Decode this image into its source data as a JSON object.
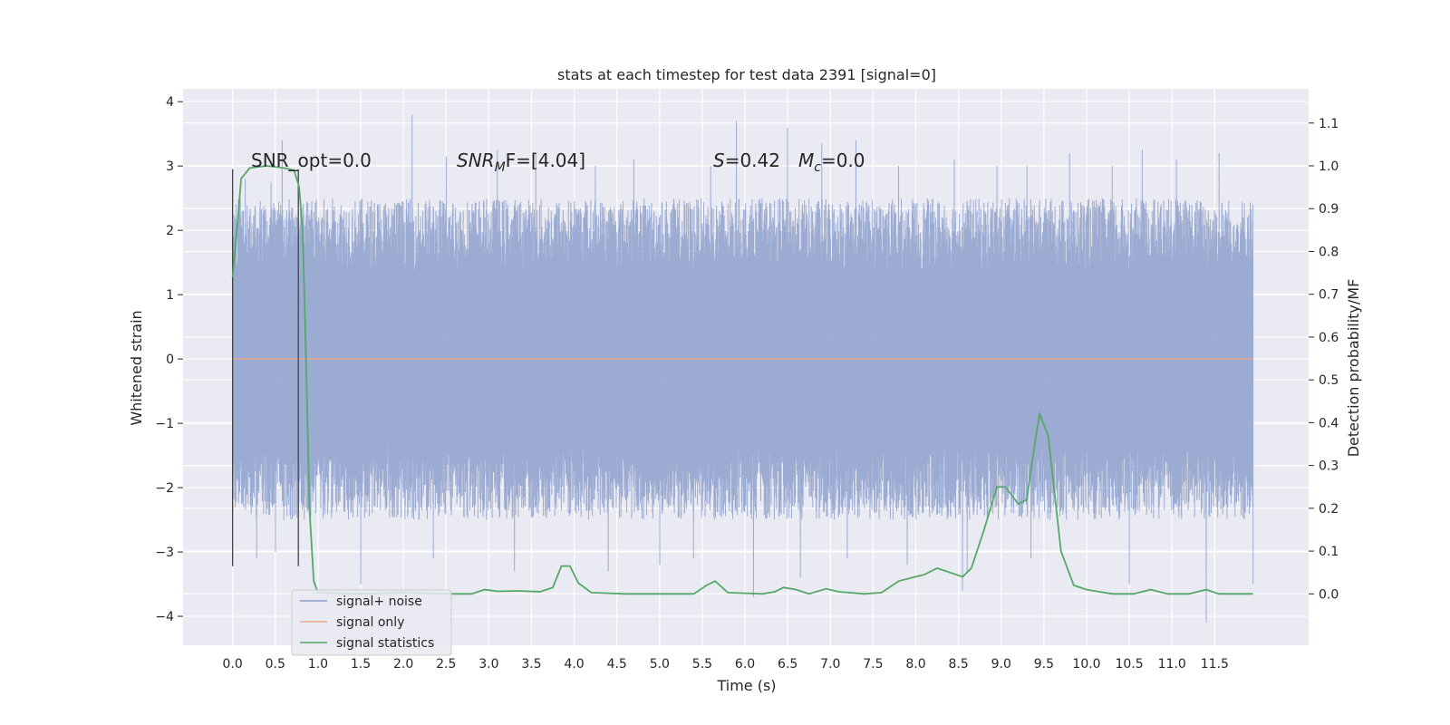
{
  "chart_data": {
    "type": "line",
    "title": "stats at each timestep for test data 2391 [signal=0]",
    "xlabel": "Time (s)",
    "ylabel": "Whitened strain",
    "y2label": "Detection probability/MF",
    "xlim": [
      -0.58,
      12.6
    ],
    "ylim": [
      -4.45,
      4.2
    ],
    "y2lim": [
      -0.12,
      1.18
    ],
    "xticks": [
      "0.0",
      "0.5",
      "1.0",
      "1.5",
      "2.0",
      "2.5",
      "3.0",
      "3.5",
      "4.0",
      "4.5",
      "5.0",
      "5.5",
      "6.0",
      "6.5",
      "7.0",
      "7.5",
      "8.0",
      "8.5",
      "9.0",
      "9.5",
      "10.0",
      "10.5",
      "11.0",
      "11.5"
    ],
    "yticks": [
      "−4",
      "−3",
      "−2",
      "−1",
      "0",
      "1",
      "2",
      "3",
      "4"
    ],
    "y2ticks": [
      "0.0",
      "0.1",
      "0.2",
      "0.3",
      "0.4",
      "0.5",
      "0.6",
      "0.7",
      "0.8",
      "0.9",
      "1.0",
      "1.1"
    ],
    "grid": true,
    "legend_position": "lower-left",
    "annotations": {
      "snr_opt": "SNR_opt=0.0",
      "snr_mf_base": "SNR",
      "snr_mf_sub": "M",
      "snr_mf_rest": "F=[4.04]",
      "s_var": "S",
      "s_rest": "=0.42",
      "mc_var": "M",
      "mc_sub": "c",
      "mc_rest": "=0.0"
    },
    "vlines_x": [
      0.0,
      0.77
    ],
    "series": [
      {
        "name": "signal+ noise",
        "color": "#8da0cb",
        "duration": 11.95,
        "envelope_upper": 2.5,
        "envelope_lower": -2.5,
        "peaks": [
          [
            0.15,
            2.8
          ],
          [
            0.45,
            2.75
          ],
          [
            0.58,
            3.4
          ],
          [
            2.1,
            3.8
          ],
          [
            2.5,
            3.15
          ],
          [
            3.1,
            3.25
          ],
          [
            3.55,
            3.2
          ],
          [
            4.25,
            3.0
          ],
          [
            4.7,
            3.1
          ],
          [
            5.6,
            3.0
          ],
          [
            5.9,
            3.7
          ],
          [
            6.5,
            3.6
          ],
          [
            6.9,
            3.35
          ],
          [
            7.3,
            3.4
          ],
          [
            7.8,
            3.0
          ],
          [
            8.45,
            3.1
          ],
          [
            8.95,
            3.0
          ],
          [
            9.3,
            3.0
          ],
          [
            9.8,
            3.2
          ],
          [
            10.3,
            3.0
          ],
          [
            10.65,
            3.25
          ],
          [
            11.05,
            3.1
          ],
          [
            11.55,
            3.2
          ],
          [
            11.95,
            2.4
          ],
          [
            0.28,
            -3.1
          ],
          [
            1.5,
            -3.5
          ],
          [
            2.35,
            -3.1
          ],
          [
            3.3,
            -3.3
          ],
          [
            4.4,
            -3.3
          ],
          [
            5.0,
            -3.2
          ],
          [
            6.1,
            -3.7
          ],
          [
            6.65,
            -3.4
          ],
          [
            7.9,
            -3.2
          ],
          [
            8.55,
            -3.6
          ],
          [
            8.6,
            -3.3
          ],
          [
            9.35,
            -3.1
          ],
          [
            10.5,
            -3.5
          ],
          [
            11.4,
            -4.1
          ],
          [
            11.95,
            -3.5
          ],
          [
            0.5,
            -3.0
          ],
          [
            5.4,
            -3.1
          ],
          [
            7.2,
            -3.1
          ]
        ]
      },
      {
        "name": "signal only",
        "color": "#e5a98c",
        "y": 0.0
      },
      {
        "name": "signal statistics",
        "color": "#55a868",
        "axis": "right",
        "points": [
          [
            0.0,
            0.74
          ],
          [
            0.05,
            0.85
          ],
          [
            0.1,
            0.97
          ],
          [
            0.2,
            0.995
          ],
          [
            0.4,
            1.0
          ],
          [
            0.6,
            0.995
          ],
          [
            0.72,
            0.99
          ],
          [
            0.78,
            0.95
          ],
          [
            0.82,
            0.85
          ],
          [
            0.86,
            0.55
          ],
          [
            0.9,
            0.2
          ],
          [
            0.95,
            0.03
          ],
          [
            1.0,
            0.003
          ],
          [
            1.5,
            0.0
          ],
          [
            2.0,
            0.003
          ],
          [
            2.5,
            0.0
          ],
          [
            2.8,
            0.0
          ],
          [
            2.95,
            0.01
          ],
          [
            3.1,
            0.006
          ],
          [
            3.35,
            0.007
          ],
          [
            3.6,
            0.005
          ],
          [
            3.75,
            0.015
          ],
          [
            3.85,
            0.065
          ],
          [
            3.95,
            0.065
          ],
          [
            4.05,
            0.025
          ],
          [
            4.2,
            0.003
          ],
          [
            4.6,
            0.0
          ],
          [
            5.0,
            0.0
          ],
          [
            5.4,
            0.0
          ],
          [
            5.55,
            0.02
          ],
          [
            5.65,
            0.03
          ],
          [
            5.8,
            0.003
          ],
          [
            6.2,
            0.0
          ],
          [
            6.35,
            0.005
          ],
          [
            6.45,
            0.015
          ],
          [
            6.6,
            0.01
          ],
          [
            6.75,
            0.0
          ],
          [
            6.95,
            0.012
          ],
          [
            7.1,
            0.005
          ],
          [
            7.4,
            0.0
          ],
          [
            7.6,
            0.003
          ],
          [
            7.8,
            0.03
          ],
          [
            8.0,
            0.04
          ],
          [
            8.1,
            0.045
          ],
          [
            8.25,
            0.06
          ],
          [
            8.4,
            0.05
          ],
          [
            8.55,
            0.04
          ],
          [
            8.65,
            0.06
          ],
          [
            8.8,
            0.15
          ],
          [
            8.95,
            0.25
          ],
          [
            9.05,
            0.25
          ],
          [
            9.2,
            0.21
          ],
          [
            9.3,
            0.22
          ],
          [
            9.4,
            0.36
          ],
          [
            9.45,
            0.42
          ],
          [
            9.55,
            0.37
          ],
          [
            9.7,
            0.1
          ],
          [
            9.85,
            0.02
          ],
          [
            10.0,
            0.01
          ],
          [
            10.3,
            0.0
          ],
          [
            10.55,
            0.0
          ],
          [
            10.75,
            0.01
          ],
          [
            10.95,
            0.0
          ],
          [
            11.2,
            0.0
          ],
          [
            11.4,
            0.01
          ],
          [
            11.55,
            0.0
          ],
          [
            11.95,
            0.0
          ]
        ]
      }
    ]
  }
}
